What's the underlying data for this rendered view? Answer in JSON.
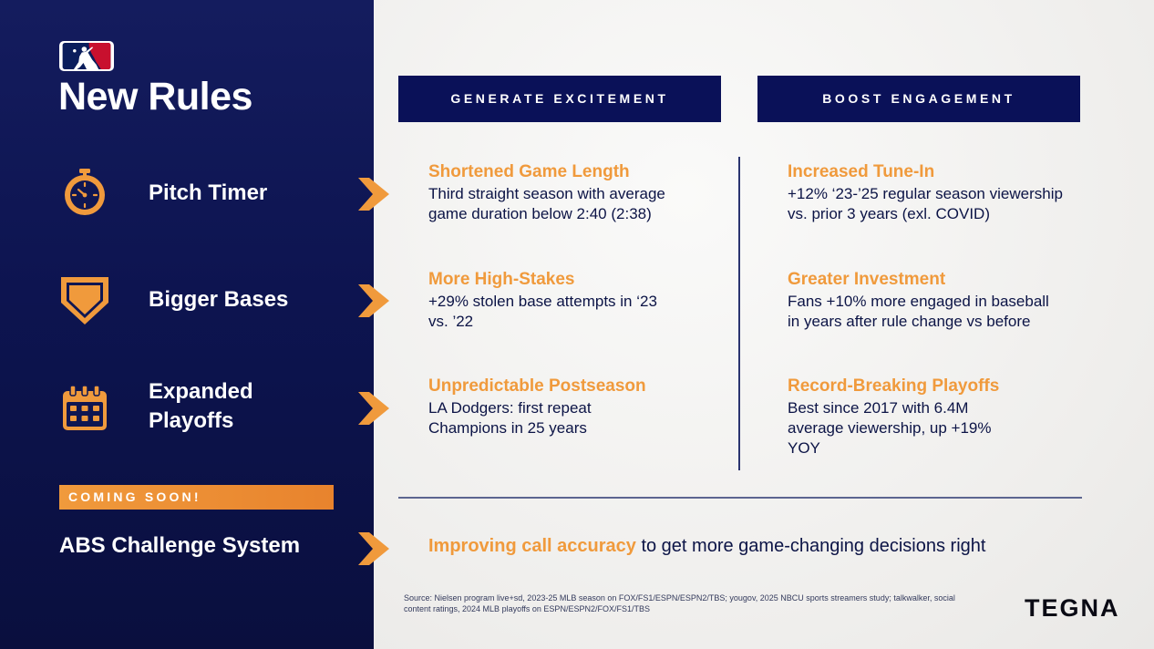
{
  "colors": {
    "navy": "#0a1158",
    "orange": "#f09a3c",
    "panel_dark": "#0d1450",
    "red": "#c8102e"
  },
  "logo": {
    "icon": "mlb-logo"
  },
  "title": "New Rules",
  "rules": [
    {
      "label": "Pitch Timer",
      "icon": "stopwatch-icon"
    },
    {
      "label": "Bigger Bases",
      "icon": "home-plate-icon"
    },
    {
      "label_line1": "Expanded",
      "label_line2": "Playoffs",
      "icon": "calendar-icon"
    }
  ],
  "coming_soon": "COMING SOON!",
  "abs": {
    "label": "ABS Challenge System",
    "highlight": "Improving call accuracy",
    "rest": " to get more game-changing decisions right"
  },
  "columns": {
    "excitement": {
      "header": "GENERATE EXCITEMENT",
      "items": [
        {
          "title": "Shortened Game Length",
          "desc_line1": "Third straight season with average",
          "desc_line2": "game duration below 2:40 (2:38)"
        },
        {
          "title": "More High-Stakes",
          "desc_line1": "+29% stolen base attempts in ‘23",
          "desc_line2": "vs. ’22"
        },
        {
          "title": "Unpredictable Postseason",
          "desc_line1": "LA Dodgers: first repeat",
          "desc_line2": "Champions in 25 years"
        }
      ]
    },
    "engagement": {
      "header": "BOOST ENGAGEMENT",
      "items": [
        {
          "title": "Increased Tune-In",
          "desc_line1": "+12% ‘23-’25 regular season viewership",
          "desc_line2": "vs. prior 3 years (exl. COVID)"
        },
        {
          "title": "Greater Investment",
          "desc_line1": "Fans +10% more engaged in baseball",
          "desc_line2": "in years after rule change vs before"
        },
        {
          "title": "Record-Breaking Playoffs",
          "desc_line1": "Best since 2017 with 6.4M",
          "desc_line2": "average viewership, up +19%",
          "desc_line3": "YOY"
        }
      ]
    }
  },
  "source_line1": "Source: Nielsen program live+sd, 2023-25 MLB season on FOX/FS1/ESPN/ESPN2/TBS; yougov, 2025 NBCU sports streamers study; talkwalker, social",
  "source_line2": "content ratings, 2024 MLB playoffs on ESPN/ESPN2/FOX/FS1/TBS",
  "brand": "TEGNA"
}
